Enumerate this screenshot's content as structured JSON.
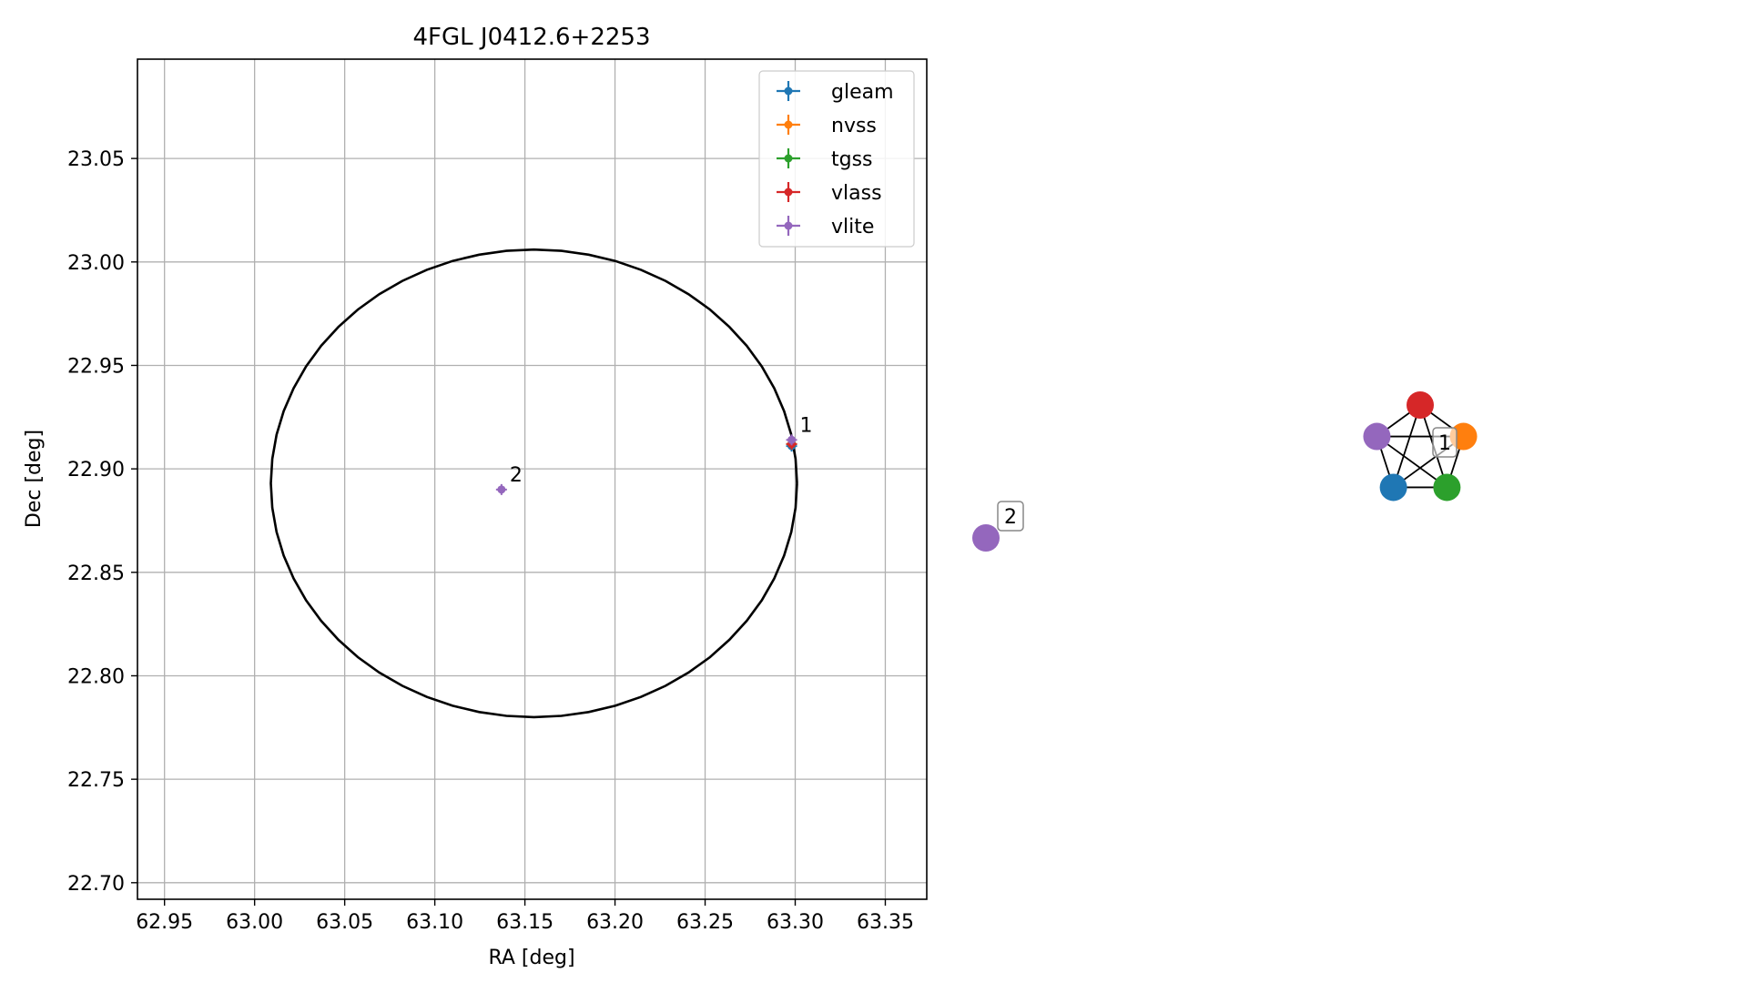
{
  "chart_data": [
    {
      "type": "scatter",
      "title": "4FGL J0412.6+2253",
      "xlabel": "RA [deg]",
      "ylabel": "Dec [deg]",
      "xlim": [
        62.935,
        63.373
      ],
      "ylim": [
        22.692,
        23.098
      ],
      "xticks": [
        "62.95",
        "63.00",
        "63.05",
        "63.10",
        "63.15",
        "63.20",
        "63.25",
        "63.30",
        "63.35"
      ],
      "yticks": [
        "22.70",
        "22.75",
        "22.80",
        "22.85",
        "22.90",
        "22.95",
        "23.00",
        "23.05"
      ],
      "grid": true,
      "legend_position": "upper right",
      "series": [
        {
          "name": "gleam",
          "color": "#1f77b4",
          "points": [
            {
              "x": 63.298,
              "y": 22.911
            }
          ]
        },
        {
          "name": "nvss",
          "color": "#ff7f0e",
          "points": [
            {
              "x": 63.298,
              "y": 22.912
            }
          ]
        },
        {
          "name": "tgss",
          "color": "#2ca02c",
          "points": [
            {
              "x": 63.298,
              "y": 22.912
            }
          ]
        },
        {
          "name": "vlass",
          "color": "#d62728",
          "points": [
            {
              "x": 63.298,
              "y": 22.912
            }
          ]
        },
        {
          "name": "vlite",
          "color": "#9467bd",
          "points": [
            {
              "x": 63.298,
              "y": 22.914
            },
            {
              "x": 63.137,
              "y": 22.89
            }
          ]
        }
      ],
      "annotations": [
        {
          "text": "1",
          "x": 63.298,
          "y": 22.914
        },
        {
          "text": "2",
          "x": 63.137,
          "y": 22.89
        }
      ],
      "ellipse": {
        "center": [
          63.155,
          22.893
        ],
        "semi_axis_ra": 0.146,
        "semi_axis_dec": 0.113,
        "color": "#000000"
      }
    },
    {
      "type": "network",
      "groups": [
        {
          "label": "1",
          "nodes": [
            {
              "name": "vlass",
              "color": "#d62728"
            },
            {
              "name": "nvss",
              "color": "#ff7f0e"
            },
            {
              "name": "tgss",
              "color": "#2ca02c"
            },
            {
              "name": "gleam",
              "color": "#1f77b4"
            },
            {
              "name": "vlite",
              "color": "#9467bd"
            }
          ],
          "edges": "complete"
        },
        {
          "label": "2",
          "nodes": [
            {
              "name": "vlite",
              "color": "#9467bd"
            }
          ],
          "edges": "none"
        }
      ]
    }
  ]
}
